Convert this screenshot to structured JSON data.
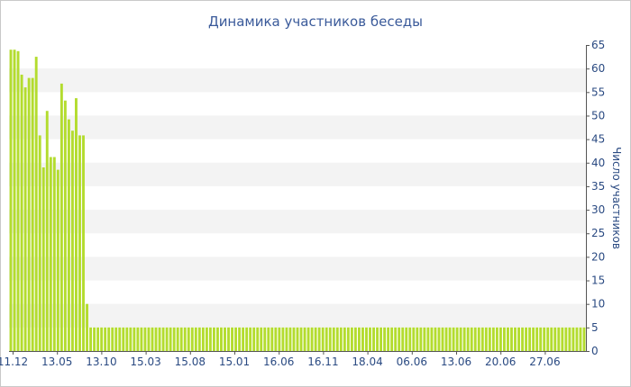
{
  "chart_data": {
    "type": "bar",
    "title": "Динамика участников беседы",
    "xlabel": "",
    "ylabel": "Число участников",
    "y_axis_side": "right",
    "ylim": [
      0,
      65
    ],
    "yticks": [
      0,
      5,
      10,
      15,
      20,
      25,
      30,
      35,
      40,
      45,
      50,
      55,
      60,
      65
    ],
    "grid": "alternating horizontal bands",
    "bar_color": "#b3dc2e",
    "band_color": "#f3f3f3",
    "x_tick_labels": [
      "11.12",
      "13.05",
      "13.10",
      "15.03",
      "15.08",
      "15.01",
      "16.06",
      "16.11",
      "18.04",
      "06.06",
      "13.06",
      "20.06",
      "27.06"
    ],
    "values": [
      64,
      64,
      63.7,
      58.7,
      56,
      58,
      58,
      62.5,
      45.8,
      39,
      51,
      41.2,
      41.2,
      38.5,
      56.8,
      53.2,
      49.2,
      46.8,
      53.7,
      45.8,
      45.8,
      10,
      5,
      5,
      5,
      5,
      5,
      5,
      5,
      5,
      5,
      5,
      5,
      5,
      5,
      5,
      5,
      5,
      5,
      5,
      5,
      5,
      5,
      5,
      5,
      5,
      5,
      5,
      5,
      5,
      5,
      5,
      5,
      5,
      5,
      5,
      5,
      5,
      5,
      5,
      5,
      5,
      5,
      5,
      5,
      5,
      5,
      5,
      5,
      5,
      5,
      5,
      5,
      5,
      5,
      5,
      5,
      5,
      5,
      5,
      5,
      5,
      5,
      5,
      5,
      5,
      5,
      5,
      5,
      5,
      5,
      5,
      5,
      5,
      5,
      5,
      5,
      5,
      5,
      5,
      5,
      5,
      5,
      5,
      5,
      5,
      5,
      5,
      5,
      5,
      5,
      5,
      5,
      5,
      5,
      5,
      5,
      5,
      5,
      5,
      5,
      5,
      5,
      5,
      5,
      5,
      5,
      5,
      5,
      5,
      5,
      5,
      5,
      5,
      5,
      5,
      5,
      5,
      5,
      5,
      5,
      5,
      5,
      5,
      5,
      5,
      5,
      5,
      5,
      5,
      5,
      5,
      5,
      5,
      5,
      5,
      5,
      5,
      5
    ]
  }
}
